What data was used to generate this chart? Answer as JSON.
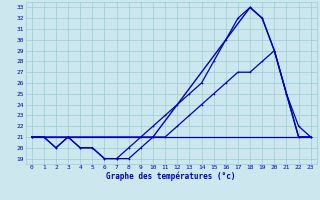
{
  "xlabel": "Graphe des températures (°c)",
  "background_color": "#cce8ee",
  "grid_color": "#99ccd6",
  "line_color": "#0000bb",
  "xlim": [
    -0.5,
    23.5
  ],
  "ylim": [
    18.5,
    33.5
  ],
  "xticks": [
    0,
    1,
    2,
    3,
    4,
    5,
    6,
    7,
    8,
    9,
    10,
    11,
    12,
    13,
    14,
    15,
    16,
    17,
    18,
    19,
    20,
    21,
    22,
    23
  ],
  "yticks": [
    19,
    20,
    21,
    22,
    23,
    24,
    25,
    26,
    27,
    28,
    29,
    30,
    31,
    32,
    33
  ],
  "series1_dotted": {
    "x": [
      0,
      1,
      2,
      3,
      4,
      5,
      6,
      7,
      8,
      9,
      10,
      11,
      12,
      13,
      14,
      15,
      16,
      17,
      18,
      19,
      20,
      21,
      22,
      23
    ],
    "y": [
      21,
      21,
      20,
      21,
      20,
      20,
      19,
      19,
      20,
      21,
      22,
      23,
      24,
      25,
      26,
      28,
      30,
      32,
      33,
      32,
      29,
      25,
      22,
      21
    ]
  },
  "series2_dotted": {
    "x": [
      0,
      1,
      2,
      3,
      4,
      5,
      6,
      7,
      8,
      9,
      10,
      11,
      12,
      13,
      14,
      15,
      16,
      17,
      18,
      19,
      20,
      21,
      22,
      23
    ],
    "y": [
      21,
      21,
      20,
      21,
      20,
      20,
      19,
      19,
      19,
      20,
      21,
      21,
      22,
      23,
      24,
      25,
      26,
      27,
      27,
      28,
      29,
      25,
      21,
      21
    ]
  },
  "series3_straight": {
    "x": [
      0,
      3,
      10,
      18,
      19,
      20,
      21,
      22,
      23
    ],
    "y": [
      21,
      21,
      21,
      33,
      32,
      29,
      25,
      21,
      21
    ]
  },
  "series4_flat": {
    "x": [
      0,
      18,
      23
    ],
    "y": [
      21,
      21,
      21
    ]
  }
}
